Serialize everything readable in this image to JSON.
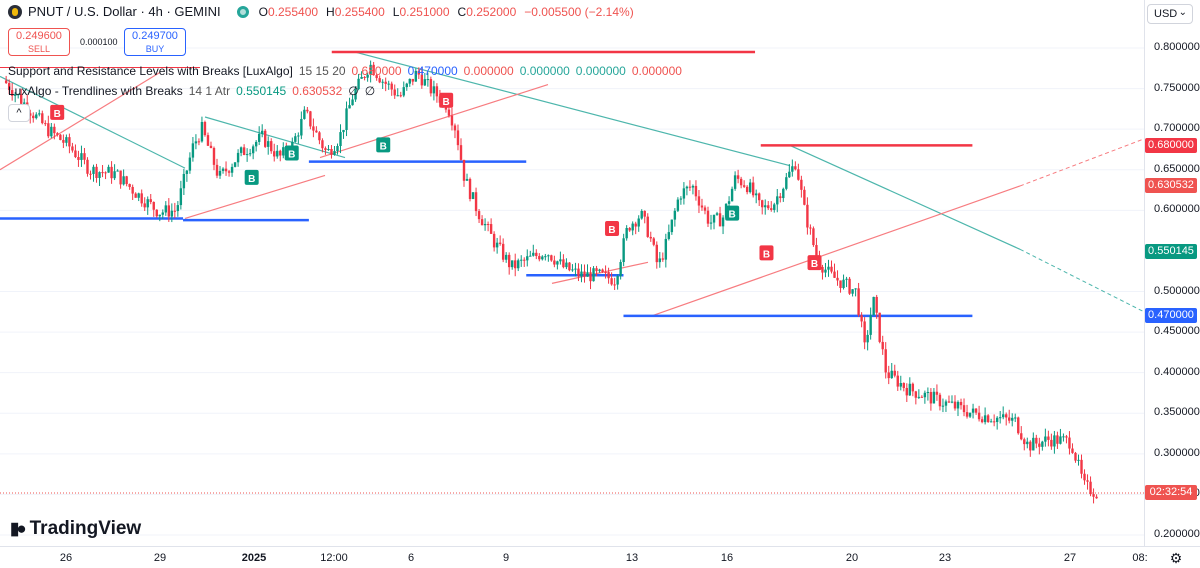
{
  "header": {
    "symbol": "PNUT / U.S. Dollar · 4h · GEMINI",
    "ohlc": [
      {
        "label": "O",
        "value": "0.255400"
      },
      {
        "label": "H",
        "value": "0.255400"
      },
      {
        "label": "L",
        "value": "0.251000"
      },
      {
        "label": "C",
        "value": "0.252000"
      },
      {
        "label": "",
        "value": "−0.005500 (−2.14%)"
      }
    ]
  },
  "trade": {
    "sell_price": "0.249600",
    "sell_label": "SELL",
    "spread": "0.000100",
    "buy_price": "0.249700",
    "buy_label": "BUY"
  },
  "indicators": [
    {
      "name": "Support and Resistance Levels with Breaks [LuxAlgo]",
      "params": "15 15 20",
      "values": [
        "0.680000",
        "0.470000",
        "0.000000",
        "0.000000",
        "0.000000",
        "0.000000"
      ]
    },
    {
      "name": "LuxAlgo - Trendlines with Breaks",
      "params": "14 1 Atr",
      "values": [
        "0.550145",
        "0.630532",
        "∅",
        "∅"
      ]
    }
  ],
  "collapse_button": "^",
  "currency": "USD",
  "price_axis": [
    "0.800000",
    "0.750000",
    "0.700000",
    "0.650000",
    "0.600000",
    "0.500000",
    "0.450000",
    "0.400000",
    "0.350000",
    "0.300000",
    "0.250000",
    "0.200000"
  ],
  "price_badges": [
    {
      "value": "0.680000",
      "color": "#f23645"
    },
    {
      "value": "0.630532",
      "color": "#ef5350"
    },
    {
      "value": "0.550145",
      "color": "#089981"
    },
    {
      "value": "0.470000",
      "color": "#2962ff"
    },
    {
      "value": "02:32:54",
      "color": "#ef5350"
    }
  ],
  "time_axis": [
    "26",
    "29",
    "2025",
    "12:00",
    "6",
    "9",
    "13",
    "16",
    "20",
    "23",
    "27",
    "08:"
  ],
  "branding": "TradingView",
  "chart_data": {
    "type": "candlestick",
    "interval": "4h",
    "yrange": [
      0.19,
      0.83
    ],
    "colors": {
      "up": "#089981",
      "down": "#f23645",
      "resistance": "#f23645",
      "support": "#2962ff",
      "trend_up": "#f77c80",
      "trend_down": "#4db6ac"
    },
    "close_path": [
      [
        0,
        0.76
      ],
      [
        10,
        0.73
      ],
      [
        20,
        0.7
      ],
      [
        30,
        0.68
      ],
      [
        40,
        0.65
      ],
      [
        52,
        0.645
      ],
      [
        62,
        0.62
      ],
      [
        72,
        0.598
      ],
      [
        80,
        0.6
      ],
      [
        88,
        0.68
      ],
      [
        92,
        0.7
      ],
      [
        100,
        0.64
      ],
      [
        110,
        0.67
      ],
      [
        120,
        0.69
      ],
      [
        128,
        0.665
      ],
      [
        134,
        0.68
      ],
      [
        140,
        0.72
      ],
      [
        150,
        0.67
      ],
      [
        156,
        0.69
      ],
      [
        162,
        0.74
      ],
      [
        170,
        0.78
      ],
      [
        176,
        0.76
      ],
      [
        184,
        0.74
      ],
      [
        192,
        0.77
      ],
      [
        198,
        0.75
      ],
      [
        206,
        0.73
      ],
      [
        210,
        0.7
      ],
      [
        214,
        0.64
      ],
      [
        220,
        0.6
      ],
      [
        228,
        0.56
      ],
      [
        236,
        0.53
      ],
      [
        244,
        0.54
      ],
      [
        252,
        0.55
      ],
      [
        260,
        0.53
      ],
      [
        268,
        0.52
      ],
      [
        276,
        0.52
      ],
      [
        284,
        0.515
      ],
      [
        290,
        0.58
      ],
      [
        296,
        0.595
      ],
      [
        300,
        0.57
      ],
      [
        304,
        0.53
      ],
      [
        308,
        0.56
      ],
      [
        314,
        0.62
      ],
      [
        320,
        0.63
      ],
      [
        328,
        0.585
      ],
      [
        334,
        0.59
      ],
      [
        340,
        0.64
      ],
      [
        346,
        0.63
      ],
      [
        352,
        0.6
      ],
      [
        358,
        0.61
      ],
      [
        364,
        0.64
      ],
      [
        368,
        0.66
      ],
      [
        372,
        0.6
      ],
      [
        378,
        0.54
      ],
      [
        384,
        0.52
      ],
      [
        390,
        0.51
      ],
      [
        396,
        0.5
      ],
      [
        400,
        0.43
      ],
      [
        404,
        0.49
      ],
      [
        410,
        0.4
      ],
      [
        420,
        0.38
      ],
      [
        430,
        0.37
      ],
      [
        440,
        0.36
      ],
      [
        450,
        0.35
      ],
      [
        460,
        0.345
      ],
      [
        470,
        0.34
      ],
      [
        476,
        0.31
      ],
      [
        486,
        0.318
      ],
      [
        496,
        0.315
      ],
      [
        502,
        0.26
      ],
      [
        508,
        0.252
      ]
    ],
    "sr_levels": [
      {
        "type": "resistance",
        "value": 0.795,
        "from": 0.29,
        "to": 0.66
      },
      {
        "type": "resistance",
        "value": 0.68,
        "from": 0.665,
        "to": 0.85
      },
      {
        "type": "support",
        "value": 0.59,
        "from": 0.0,
        "to": 0.16
      },
      {
        "type": "support",
        "value": 0.588,
        "from": 0.16,
        "to": 0.27
      },
      {
        "type": "support",
        "value": 0.66,
        "from": 0.27,
        "to": 0.46
      },
      {
        "type": "support",
        "value": 0.52,
        "from": 0.46,
        "to": 0.545
      },
      {
        "type": "support",
        "value": 0.47,
        "from": 0.545,
        "to": 0.85
      }
    ],
    "signals": [
      {
        "type": "B",
        "at": 0.22,
        "value": 0.64
      },
      {
        "type": "B",
        "at": 0.255,
        "value": 0.67
      },
      {
        "type": "B",
        "at": 0.335,
        "value": 0.68
      },
      {
        "type": "B",
        "at": 0.64,
        "value": 0.596
      },
      {
        "type": "S",
        "at": 0.05,
        "value": 0.72
      },
      {
        "type": "S",
        "at": 0.39,
        "value": 0.735
      },
      {
        "type": "S",
        "at": 0.535,
        "value": 0.577
      },
      {
        "type": "S",
        "at": 0.67,
        "value": 0.547
      },
      {
        "type": "S",
        "at": 0.712,
        "value": 0.535
      }
    ]
  }
}
